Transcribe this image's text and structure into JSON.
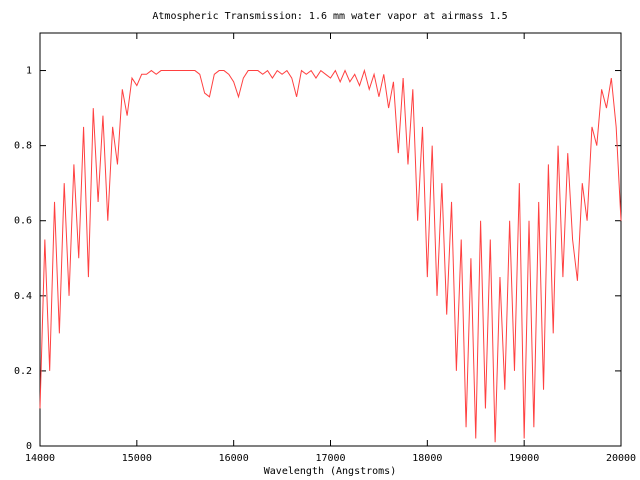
{
  "chart_data": {
    "type": "line",
    "title": "Atmospheric Transmission: 1.6 mm water vapor at airmass 1.5",
    "x_label": "Wavelength (Angstroms)",
    "x": [
      14000,
      14050,
      14100,
      14150,
      14200,
      14250,
      14300,
      14350,
      14400,
      14450,
      14500,
      14550,
      14600,
      14650,
      14700,
      14750,
      14800,
      14850,
      14900,
      14950,
      15000,
      15050,
      15100,
      15150,
      15200,
      15250,
      15300,
      15350,
      15400,
      15450,
      15500,
      15550,
      15600,
      15650,
      15700,
      15750,
      15800,
      15850,
      15900,
      15950,
      16000,
      16050,
      16100,
      16150,
      16200,
      16250,
      16300,
      16350,
      16400,
      16450,
      16500,
      16550,
      16600,
      16650,
      16700,
      16750,
      16800,
      16850,
      16900,
      16950,
      17000,
      17050,
      17100,
      17150,
      17200,
      17250,
      17300,
      17350,
      17400,
      17450,
      17500,
      17550,
      17600,
      17650,
      17700,
      17750,
      17800,
      17850,
      17900,
      17950,
      18000,
      18050,
      18100,
      18150,
      18200,
      18250,
      18300,
      18350,
      18400,
      18450,
      18500,
      18550,
      18600,
      18650,
      18700,
      18750,
      18800,
      18850,
      18900,
      18950,
      19000,
      19050,
      19100,
      19150,
      19200,
      19250,
      19300,
      19350,
      19400,
      19450,
      19500,
      19550,
      19600,
      19650,
      19700,
      19750,
      19800,
      19850,
      19900,
      19950,
      20000
    ],
    "series": [
      {
        "color": "#ff4040",
        "values": [
          0.1,
          0.55,
          0.2,
          0.65,
          0.3,
          0.7,
          0.4,
          0.75,
          0.5,
          0.85,
          0.45,
          0.9,
          0.65,
          0.88,
          0.6,
          0.85,
          0.75,
          0.95,
          0.88,
          0.98,
          0.96,
          0.99,
          0.99,
          1.0,
          0.99,
          1.0,
          1.0,
          1.0,
          1.0,
          1.0,
          1.0,
          1.0,
          1.0,
          0.99,
          0.94,
          0.93,
          0.99,
          1.0,
          1.0,
          0.99,
          0.97,
          0.93,
          0.98,
          1.0,
          1.0,
          1.0,
          0.99,
          1.0,
          0.98,
          1.0,
          0.99,
          1.0,
          0.98,
          0.93,
          1.0,
          0.99,
          1.0,
          0.98,
          1.0,
          0.99,
          0.98,
          1.0,
          0.97,
          1.0,
          0.97,
          0.99,
          0.96,
          1.0,
          0.95,
          0.99,
          0.93,
          0.99,
          0.9,
          0.97,
          0.78,
          0.98,
          0.75,
          0.95,
          0.6,
          0.85,
          0.45,
          0.8,
          0.4,
          0.7,
          0.35,
          0.65,
          0.2,
          0.55,
          0.05,
          0.5,
          0.02,
          0.6,
          0.1,
          0.55,
          0.01,
          0.45,
          0.15,
          0.6,
          0.2,
          0.7,
          0.02,
          0.6,
          0.05,
          0.65,
          0.15,
          0.75,
          0.3,
          0.8,
          0.45,
          0.78,
          0.55,
          0.44,
          0.7,
          0.6,
          0.85,
          0.8,
          0.95,
          0.9,
          0.98,
          0.85,
          0.6
        ]
      }
    ],
    "xlim": [
      14000,
      20000
    ],
    "xticks": [
      14000,
      15000,
      16000,
      17000,
      18000,
      19000,
      20000
    ],
    "ylim": [
      0,
      1.1
    ],
    "yticks": [
      0,
      0.2,
      0.4,
      0.6,
      0.8,
      1
    ]
  }
}
